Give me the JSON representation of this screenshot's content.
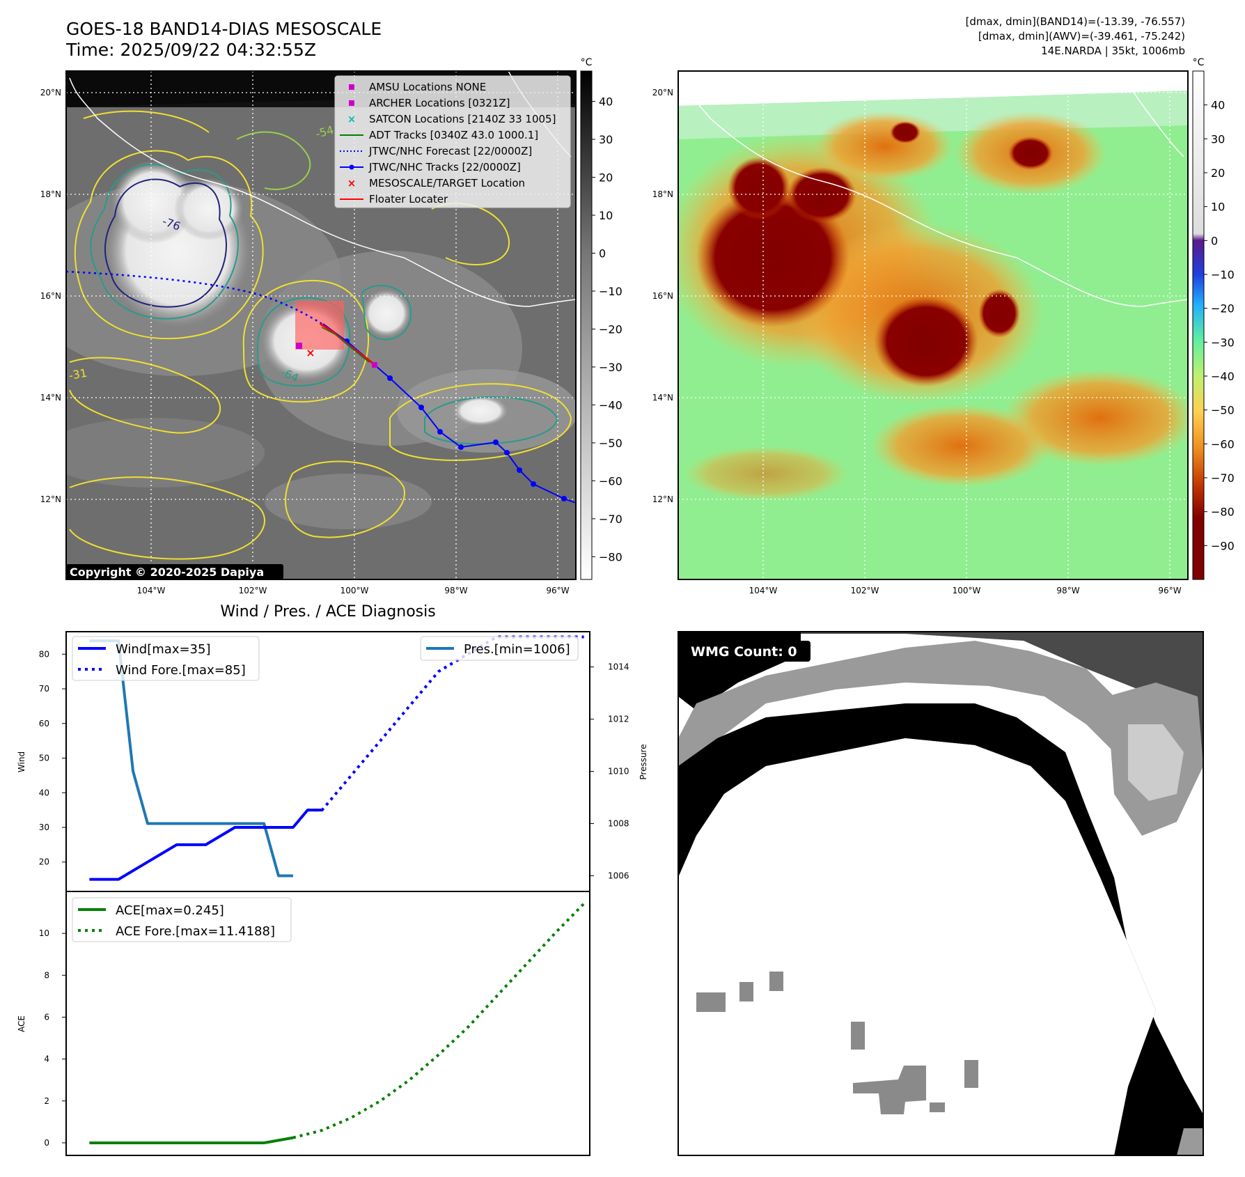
{
  "header": {
    "title_line1": "GOES-18 BAND14-DIAS MESOSCALE",
    "title_line2": "Time: 2025/09/22 04:32:55Z",
    "info_line1": "[dmax, dmin](BAND14)=(-13.39, -76.557)",
    "info_line2": "[dmax, dmin](AWV)=(-39.461, -75.242)",
    "info_line3": "14E.NARDA | 35kt, 1006mb"
  },
  "map": {
    "lat_labels": [
      "20°N",
      "18°N",
      "16°N",
      "14°N",
      "12°N"
    ],
    "lon_labels": [
      "104°W",
      "102°W",
      "100°W",
      "98°W",
      "96°W"
    ],
    "copyright": "Copyright © 2020-2025 Dapiya",
    "contour_labels": [
      "-76",
      "-64",
      "-31",
      "-54"
    ]
  },
  "legend_map": [
    {
      "label": "AMSU Locations NONE",
      "color": "#cc00cc",
      "marker": "square"
    },
    {
      "label": "ARCHER Locations [0321Z]",
      "color": "#cc00cc",
      "marker": "square"
    },
    {
      "label": "SATCON Locations [2140Z 33 1005]",
      "color": "#00bbbb",
      "marker": "x"
    },
    {
      "label": "ADT Tracks [0340Z 43.0 1000.1]",
      "color": "#008000",
      "marker": "line"
    },
    {
      "label": "JTWC/NHC Forecast [22/0000Z]",
      "color": "#0000ff",
      "marker": "dotted"
    },
    {
      "label": "JTWC/NHC Tracks [22/0000Z]",
      "color": "#0000ff",
      "marker": "line-dot"
    },
    {
      "label": "MESOSCALE/TARGET Location",
      "color": "#ff0000",
      "marker": "x"
    },
    {
      "label": "Floater Locater",
      "color": "#ff0000",
      "marker": "line"
    }
  ],
  "colorbar_gray": {
    "unit": "°C",
    "ticks": [
      40,
      30,
      20,
      10,
      0,
      -10,
      -20,
      -30,
      -40,
      -50,
      -60,
      -70,
      -80
    ],
    "range": [
      48,
      -86
    ]
  },
  "colorbar_color": {
    "unit": "°C",
    "ticks": [
      40,
      30,
      20,
      10,
      0,
      -10,
      -20,
      -30,
      -40,
      -50,
      -60,
      -70,
      -80,
      -90
    ],
    "range": [
      50,
      -100
    ]
  },
  "wmg": {
    "label": "WMG Count: 0"
  },
  "chart_data": [
    {
      "type": "line",
      "title": "Wind / Pres. / ACE Diagnosis",
      "ylabel": "Wind",
      "y2label": "Pressure",
      "ylim": [
        11.5,
        86.5
      ],
      "y2lim": [
        1005.4,
        1015.35
      ],
      "yticks": [
        20,
        30,
        40,
        50,
        60,
        70,
        80
      ],
      "y2ticks": [
        1006,
        1008,
        1010,
        1012,
        1014
      ],
      "xlim": [
        -0.8,
        17.2
      ],
      "grid": false,
      "series": [
        {
          "name": "Wind[max=35]",
          "x": [
            0,
            1,
            2,
            3,
            4,
            5,
            6,
            7,
            7.5,
            8
          ],
          "y": [
            15,
            15,
            20,
            25,
            25,
            30,
            30,
            30,
            35,
            35
          ]
        },
        {
          "name": "Wind Fore.[max=85]",
          "x": [
            7.5,
            8,
            9,
            10,
            11,
            12,
            13,
            14,
            15,
            16,
            17
          ],
          "y": [
            35,
            35,
            45,
            55,
            65,
            75,
            80,
            85,
            85,
            85,
            85
          ]
        },
        {
          "name": "Pres.[min=1006]",
          "x": [
            0,
            1,
            1.5,
            2,
            3,
            4,
            5,
            6,
            6.5,
            7
          ],
          "y": [
            1015,
            1015,
            1010,
            1008,
            1008,
            1008,
            1008,
            1008,
            1006,
            1006
          ]
        }
      ],
      "legend": [
        "top-left",
        "top-right"
      ]
    },
    {
      "type": "line",
      "ylabel": "ACE",
      "ylim": [
        -0.6,
        12
      ],
      "yticks": [
        0,
        2,
        4,
        6,
        8,
        10
      ],
      "xlim": [
        -0.8,
        17.2
      ],
      "grid": false,
      "series": [
        {
          "name": "ACE[max=0.245]",
          "x": [
            0,
            6,
            7
          ],
          "y": [
            0,
            0,
            0.245
          ]
        },
        {
          "name": "ACE Fore.[max=11.4188]",
          "x": [
            7,
            8,
            9,
            10,
            11,
            12,
            13,
            14,
            15,
            16,
            17
          ],
          "y": [
            0.245,
            0.6,
            1.2,
            2.0,
            3.0,
            4.2,
            5.5,
            7.0,
            8.5,
            10.0,
            11.4188
          ]
        }
      ],
      "legend": "top-left"
    }
  ]
}
